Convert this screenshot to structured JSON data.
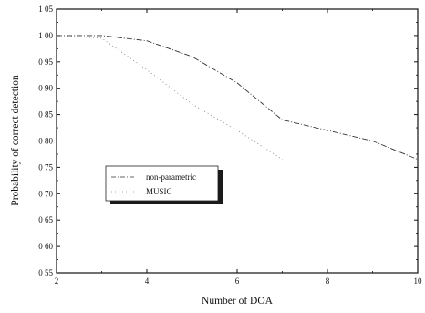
{
  "chart_data": {
    "type": "line",
    "xlabel": "Number of DOA",
    "ylabel": "Probability of correct detection",
    "xlim": [
      2,
      10
    ],
    "ylim": [
      0.55,
      1.05
    ],
    "x_ticks": [
      "2",
      "4",
      "6",
      "8",
      "10"
    ],
    "y_ticks": [
      "0 55",
      "0 60",
      "0 65",
      "0 70",
      "0 75",
      "0 80",
      "0 85",
      "0 90",
      "0 95",
      "1 00",
      "1 05"
    ],
    "grid": false,
    "legend_position": "center-left",
    "series": [
      {
        "name": "non-parametric",
        "style": "dash-dot",
        "color": "#333333",
        "x": [
          2,
          3,
          4,
          5,
          6,
          7,
          8,
          9,
          10
        ],
        "y": [
          1.0,
          1.0,
          0.99,
          0.96,
          0.91,
          0.84,
          0.82,
          0.8,
          0.765
        ]
      },
      {
        "name": "MUSIC",
        "style": "dotted",
        "color": "#888888",
        "x": [
          2,
          3,
          4,
          5,
          6,
          7
        ],
        "y": [
          1.0,
          0.995,
          0.935,
          0.87,
          0.82,
          0.765
        ]
      }
    ]
  }
}
